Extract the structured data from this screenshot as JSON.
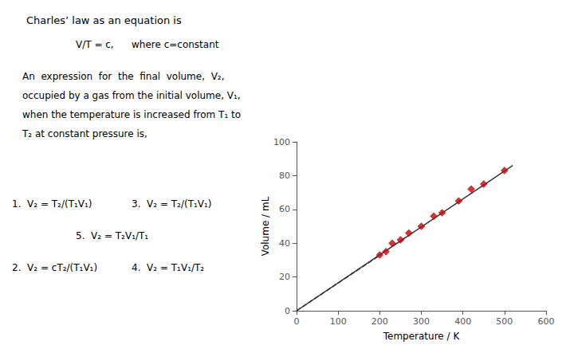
{
  "chart_data": {
    "type": "scatter",
    "title": "Charles’ law as an equation is",
    "annotations": [
      "V/T = c,",
      "where c=constant",
      "An  expression  for  the  final  volume,  V₂,",
      "occupied by a gas from the initial volume, V₁,",
      "when the temperature is increased from T₁ to",
      "T₂ at constant pressure is,",
      "1.  V₂ = T₂/(T₁V₁)",
      "3.  V₂ = T₂/(T₁V₁)",
      "5.  V₂ = T₂V₁/T₁",
      "2.  V₂ = cT₂/(T₁V₁)",
      "4.  V₂ = T₁V₁/T₂"
    ],
    "xlabel": "Temperature / K",
    "ylabel": "Volume / mL",
    "xlim": [
      0,
      600
    ],
    "ylim": [
      0,
      100
    ],
    "xticks": [
      0,
      100,
      200,
      300,
      400,
      500,
      600
    ],
    "yticks": [
      0,
      20,
      40,
      60,
      80,
      100
    ],
    "grid": false,
    "series": [
      {
        "type": "line",
        "line_style": "dashed",
        "marker": "none",
        "color": "#333333",
        "x": [
          0,
          195
        ],
        "values": [
          0,
          32
        ]
      },
      {
        "type": "line",
        "line_style": "solid",
        "marker": "none",
        "color": "#333333",
        "x": [
          0,
          520
        ],
        "values": [
          0,
          86
        ]
      },
      {
        "type": "scatter",
        "marker": "diamond",
        "color": "#cc0000",
        "x": [
          200,
          215,
          230,
          250,
          270,
          300,
          330,
          350,
          390,
          420,
          450,
          500
        ],
        "values": [
          33,
          35,
          40,
          42,
          46,
          50,
          56,
          58,
          65,
          72,
          75,
          83
        ]
      }
    ]
  }
}
